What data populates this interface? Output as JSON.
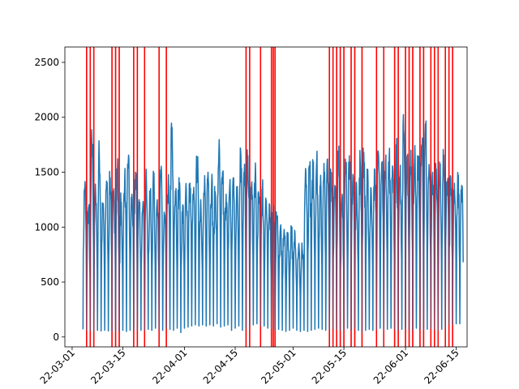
{
  "chart_data": {
    "type": "line",
    "title": "",
    "xlabel": "",
    "ylabel": "",
    "ylim": [
      -90,
      2640
    ],
    "xlim": [
      "2022-02-27",
      "2022-06-18"
    ],
    "x_ticks": [
      "2022-03-01",
      "2022-03-15",
      "2022-04-01",
      "2022-04-15",
      "2022-05-01",
      "2022-05-15",
      "2022-06-01",
      "2022-06-15"
    ],
    "x_tick_labels_visible": [
      "22-03-01",
      "22-03-15",
      "22-04-01",
      "22-04-15",
      "22-05-01",
      "22-05-15",
      "22-06-01",
      "22-06-15"
    ],
    "y_ticks": [
      0,
      500,
      1000,
      1500,
      2000,
      2500
    ],
    "grid": false,
    "legend": "none",
    "series": [
      {
        "color": "#1f77b4",
        "x_start": "2022-03-04",
        "x_end": "2022-06-16",
        "samples_per_day": 12,
        "daily_peaks": [
          1360,
          1180,
          1750,
          1300,
          1650,
          1200,
          1420,
          1450,
          1350,
          1510,
          1200,
          1420,
          1600,
          1300,
          1500,
          1250,
          1180,
          1420,
          1300,
          1380,
          1250,
          1460,
          1100,
          1380,
          1850,
          1330,
          1450,
          1200,
          1350,
          1400,
          1300,
          1600,
          1250,
          1350,
          1500,
          1400,
          1320,
          1680,
          1500,
          1300,
          1380,
          1450,
          1350,
          1700,
          1500,
          1650,
          1380,
          1450,
          1300,
          1350,
          1250,
          1200,
          1150,
          1100,
          1000,
          980,
          950,
          1000,
          950,
          820,
          800,
          1510,
          1560,
          1550,
          1600,
          1350,
          1580,
          1620,
          1480,
          1380,
          1640,
          1300,
          1560,
          1650,
          1480,
          1380,
          1600,
          1680,
          1400,
          1350,
          1520,
          1680,
          1500,
          1600,
          1630,
          1540,
          1650,
          1510,
          1880,
          1560,
          1700,
          1620,
          1590,
          1750,
          1940,
          1570,
          1500,
          1530,
          1470,
          1560,
          1420,
          1440,
          1400,
          1390,
          1380
        ],
        "daily_troughs": [
          70,
          60,
          60,
          50,
          60,
          55,
          60,
          55,
          50,
          60,
          55,
          60,
          50,
          60,
          65,
          70,
          60,
          60,
          70,
          60,
          80,
          70,
          60,
          80,
          70,
          60,
          80,
          40,
          80,
          90,
          100,
          110,
          100,
          110,
          100,
          110,
          100,
          120,
          90,
          100,
          110,
          60,
          80,
          100,
          60,
          80,
          100,
          110,
          120,
          100,
          100,
          80,
          80,
          60,
          70,
          60,
          50,
          60,
          80,
          60,
          50,
          60,
          50,
          60,
          70,
          80,
          70,
          60,
          70,
          80,
          70,
          60,
          70,
          80,
          60,
          80,
          60,
          40,
          60,
          70,
          60,
          70,
          80,
          60,
          70,
          80,
          70,
          60,
          70,
          80,
          70,
          60,
          80,
          70,
          60,
          70,
          80,
          70,
          60,
          70,
          80,
          120,
          110,
          120,
          120
        ]
      }
    ],
    "vertical_markers": {
      "color": "#ff0000",
      "dates": [
        "2022-03-05",
        "2022-03-06",
        "2022-03-07",
        "2022-03-12",
        "2022-03-13",
        "2022-03-14",
        "2022-03-18",
        "2022-03-19",
        "2022-03-21",
        "2022-03-25",
        "2022-03-27",
        "2022-04-18",
        "2022-04-19",
        "2022-04-22",
        "2022-04-25",
        "2022-04-25.5",
        "2022-04-26",
        "2022-05-11",
        "2022-05-12",
        "2022-05-13",
        "2022-05-14",
        "2022-05-15",
        "2022-05-17",
        "2022-05-18",
        "2022-05-20",
        "2022-05-24",
        "2022-05-26",
        "2022-05-29",
        "2022-05-30",
        "2022-06-01",
        "2022-06-02",
        "2022-06-03",
        "2022-06-05",
        "2022-06-06",
        "2022-06-08",
        "2022-06-09",
        "2022-06-10",
        "2022-06-12",
        "2022-06-13",
        "2022-06-14"
      ]
    }
  }
}
